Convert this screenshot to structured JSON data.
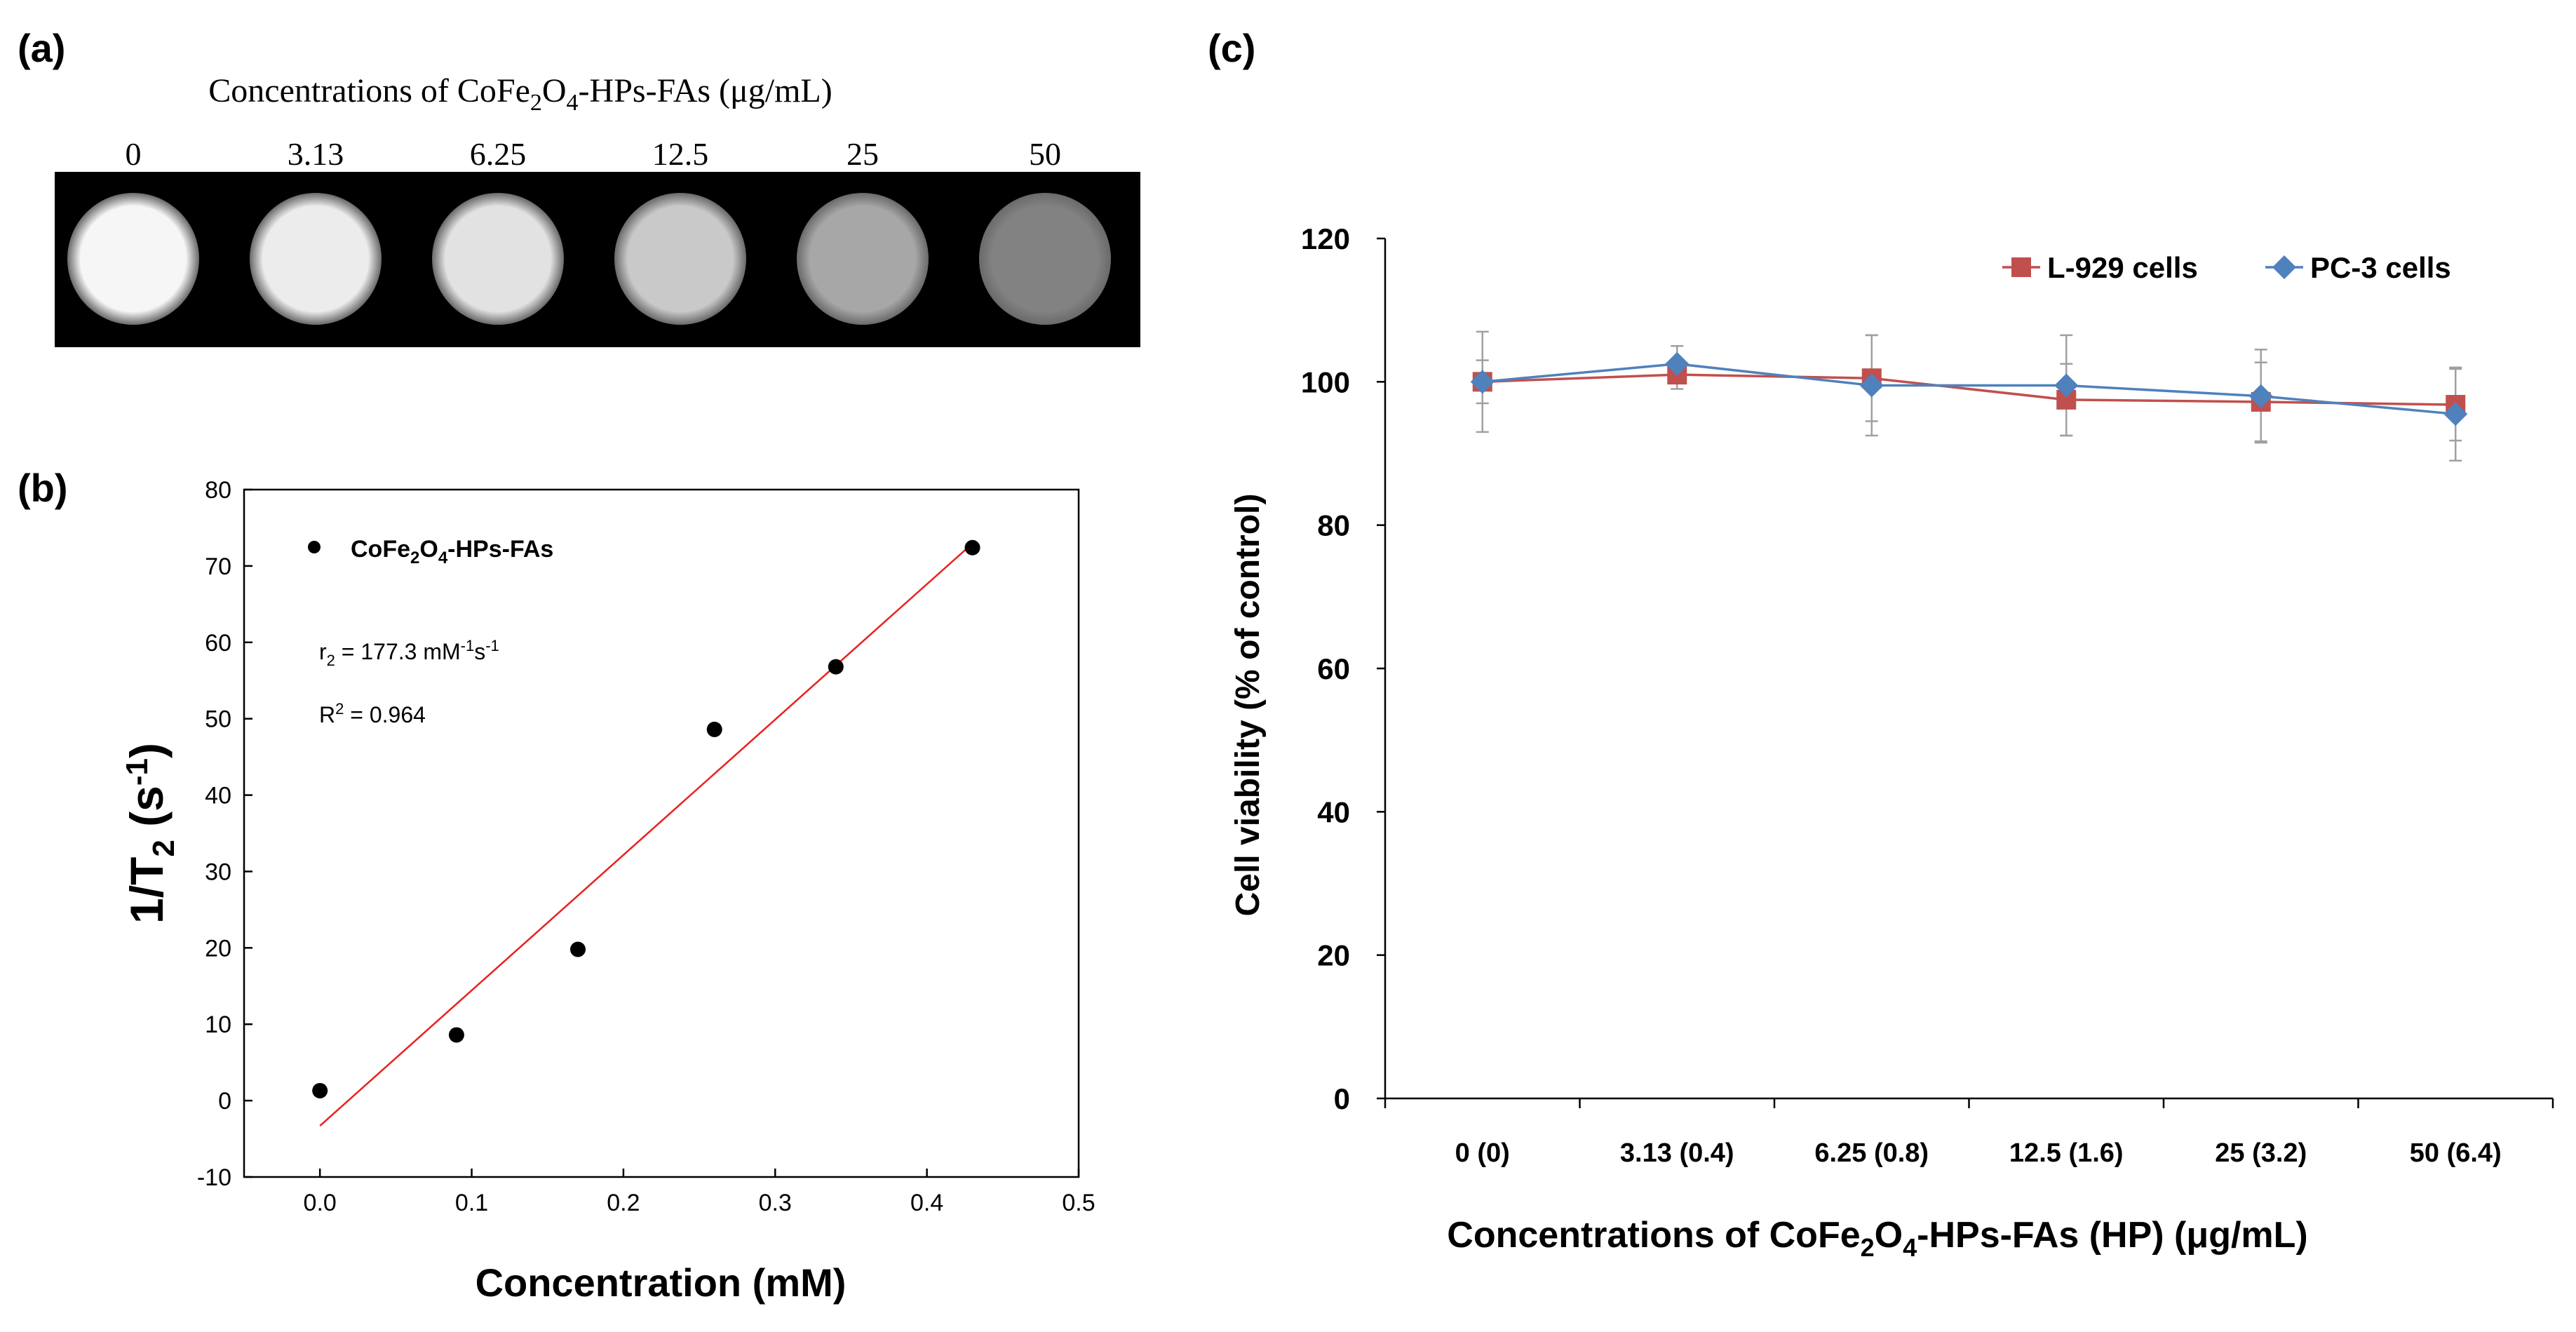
{
  "panel_labels": {
    "a": "(a)",
    "b": "(b)",
    "c": "(c)"
  },
  "phantom": {
    "title_prefix": "Concentrations of CoFe",
    "title_sub1": "2",
    "title_mid": "O",
    "title_sub2": "4",
    "title_suffix": "-HPs-FAs (μg/mL)",
    "samples": [
      {
        "label": "0",
        "gray": "#f6f6f6"
      },
      {
        "label": "3.13",
        "gray": "#ececec"
      },
      {
        "label": "6.25",
        "gray": "#e2e2e2"
      },
      {
        "label": "12.5",
        "gray": "#c9c9c9"
      },
      {
        "label": "25",
        "gray": "#a7a7a7"
      },
      {
        "label": "50",
        "gray": "#828282"
      }
    ]
  },
  "chart_data": [
    {
      "id": "b",
      "type": "scatter",
      "title": "",
      "xlabel": "Concentration (mM)",
      "ylabel": {
        "main": "1/T",
        "sub": "2",
        "unit_open": " (s",
        "sup": "-1",
        "unit_close": ")"
      },
      "xlim": [
        -0.05,
        0.5
      ],
      "ylim": [
        -10,
        80
      ],
      "xticks": [
        0.0,
        0.1,
        0.2,
        0.3,
        0.4,
        0.5
      ],
      "xtick_labels": [
        "0.0",
        "0.1",
        "0.2",
        "0.3",
        "0.4",
        "0.5"
      ],
      "yticks": [
        -10,
        0,
        10,
        20,
        30,
        40,
        50,
        60,
        70,
        80
      ],
      "ytick_labels": [
        "-10",
        "0",
        "10",
        "20",
        "30",
        "40",
        "50",
        "60",
        "70",
        "80"
      ],
      "points": [
        {
          "x": 0.0,
          "y": 1.3
        },
        {
          "x": 0.09,
          "y": 8.6
        },
        {
          "x": 0.17,
          "y": 19.8
        },
        {
          "x": 0.26,
          "y": 48.6
        },
        {
          "x": 0.34,
          "y": 56.8
        },
        {
          "x": 0.43,
          "y": 72.4
        }
      ],
      "fit": {
        "slope": 177.3,
        "intercept": -3.3,
        "x_range": [
          0.0,
          0.43
        ],
        "color": "#e8211f"
      },
      "legend": {
        "label_prefix": "CoFe",
        "sub1": "2",
        "mid": "O",
        "sub2": "4",
        "label_suffix": "-HPs-FAs",
        "position": "top-left"
      },
      "annotations": {
        "r2_prefix": "r",
        "r2_sub": "2",
        "r2_value": " = 177.3 mM",
        "r2_sup1": "-1",
        "r2_s": "s",
        "r2_sup2": "-1",
        "Rsq_prefix": "R",
        "Rsq_sup": "2",
        "Rsq_value": " = 0.964"
      }
    },
    {
      "id": "c",
      "type": "line",
      "title": "",
      "xlabel": {
        "prefix": "Concentrations of CoFe",
        "sub1": "2",
        "mid": "O",
        "sub2": "4",
        "suffix": "-HPs-FAs (HP) (μg/mL)"
      },
      "ylabel": "Cell viability (% of control)",
      "categories": [
        "0 (0)",
        "3.13 (0.4)",
        "6.25 (0.8)",
        "12.5 (1.6)",
        "25 (3.2)",
        "50 (6.4)"
      ],
      "ylim": [
        0,
        120
      ],
      "yticks": [
        0,
        20,
        40,
        60,
        80,
        100,
        120
      ],
      "ytick_labels": [
        "0",
        "20",
        "40",
        "60",
        "80",
        "100",
        "120"
      ],
      "series": [
        {
          "name": "L-929 cells",
          "color": "#c0504d",
          "marker": "square",
          "values": [
            100.0,
            101.0,
            100.5,
            97.5,
            97.2,
            96.8
          ],
          "errors": [
            3.0,
            2.0,
            6.0,
            5.0,
            5.5,
            5.0
          ]
        },
        {
          "name": "PC-3 cells",
          "color": "#4f81bd",
          "marker": "diamond",
          "values": [
            100.0,
            102.5,
            99.5,
            99.5,
            98.0,
            95.5
          ],
          "errors": [
            7.0,
            2.5,
            7.0,
            7.0,
            6.5,
            6.5
          ]
        }
      ],
      "legend_position": "top-right"
    }
  ]
}
